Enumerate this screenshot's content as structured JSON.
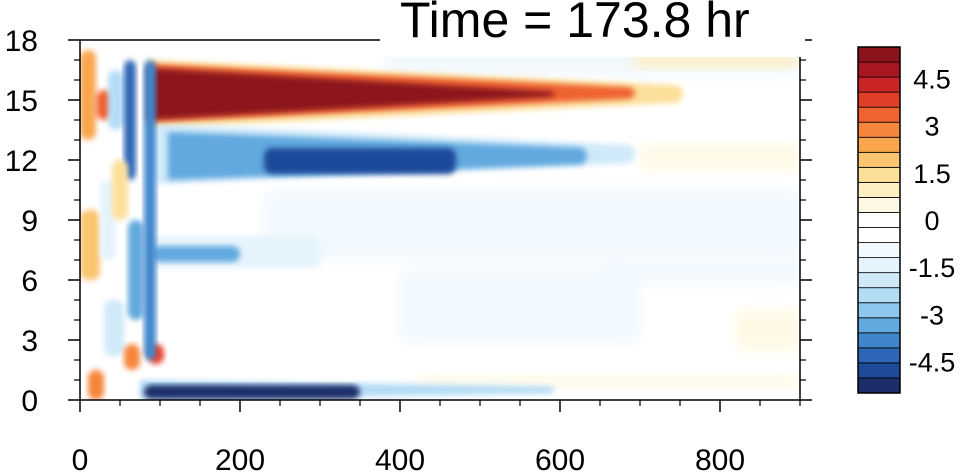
{
  "chart_data": {
    "type": "heatmap",
    "title": "Time = 173.8 hr",
    "xlabel": "",
    "ylabel": "",
    "xlim": [
      0,
      900
    ],
    "ylim": [
      0,
      18
    ],
    "x_ticks": [
      "0",
      "200",
      "400",
      "600",
      "800"
    ],
    "y_ticks": [
      "0",
      "3",
      "6",
      "9",
      "12",
      "15",
      "18"
    ],
    "colorbar": {
      "levels": [
        -5.5,
        -5,
        -4.5,
        -4,
        -3.5,
        -3,
        -2.5,
        -2,
        -1.5,
        -1,
        -0.5,
        0,
        0.5,
        1,
        1.5,
        2,
        2.5,
        3,
        3.5,
        4,
        4.5,
        5,
        5.5
      ],
      "tick_labels": [
        "4.5",
        "3",
        "1.5",
        "0",
        "-1.5",
        "-3",
        "-4.5"
      ],
      "tick_values": [
        4.5,
        3,
        1.5,
        0,
        -1.5,
        -3,
        -4.5
      ],
      "colors": [
        "#1c2d6a",
        "#1f4a9a",
        "#2e66b7",
        "#3f86cc",
        "#62a9df",
        "#8ec7ee",
        "#b3dcf5",
        "#d0e9f9",
        "#e5f3fc",
        "#f2f9fe",
        "#ffffff",
        "#ffffff",
        "#fef9e4",
        "#fdefc2",
        "#fcdf99",
        "#fbc46f",
        "#f9a64d",
        "#f5853a",
        "#ef6330",
        "#e23f2b",
        "#c92526",
        "#a91820",
        "#8c121c"
      ]
    },
    "features": [
      {
        "name": "upper positive band",
        "x": [
          85,
          620
        ],
        "y": [
          14.0,
          16.5
        ],
        "peak_value": 5.5
      },
      {
        "name": "negative band below",
        "x": [
          100,
          600
        ],
        "y": [
          11.2,
          13.3
        ],
        "peak_value": -4.5
      },
      {
        "name": "near-surface negative band",
        "x": [
          80,
          560
        ],
        "y": [
          0.1,
          0.8
        ],
        "peak_value": -5.5
      },
      {
        "name": "mid-level negative band",
        "x": [
          90,
          240
        ],
        "y": [
          6.8,
          7.8
        ],
        "peak_value": -3.0
      },
      {
        "name": "left-edge positive patch",
        "x": [
          0,
          70
        ],
        "y": [
          0,
          18
        ],
        "peak_value": 3.0
      }
    ]
  }
}
